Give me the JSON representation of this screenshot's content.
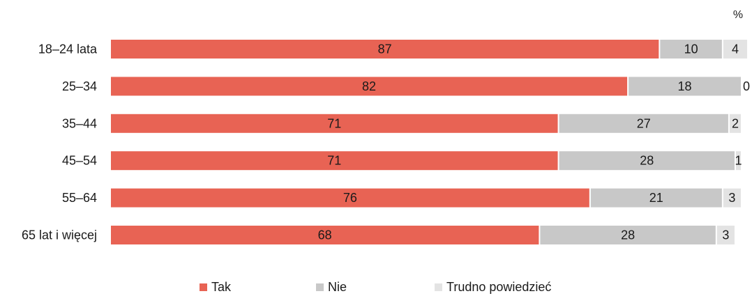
{
  "chart_data": {
    "type": "bar",
    "orientation": "horizontal",
    "stacked": true,
    "unit": "%",
    "title": "",
    "xlabel": "",
    "ylabel": "",
    "xlim": [
      0,
      100
    ],
    "grid": false,
    "legend_position": "bottom",
    "categories": [
      "18–24 lata",
      "25–34",
      "35–44",
      "45–54",
      "55–64",
      "65 lat i więcej"
    ],
    "series": [
      {
        "name": "Tak",
        "color": "#e86354",
        "values": [
          87,
          82,
          71,
          71,
          76,
          68
        ]
      },
      {
        "name": "Nie",
        "color": "#c8c8c8",
        "values": [
          10,
          18,
          27,
          28,
          21,
          28
        ]
      },
      {
        "name": "Trudno powiedzieć",
        "color": "#e3e3e3",
        "values": [
          4,
          0,
          2,
          1,
          3,
          3
        ]
      }
    ]
  }
}
